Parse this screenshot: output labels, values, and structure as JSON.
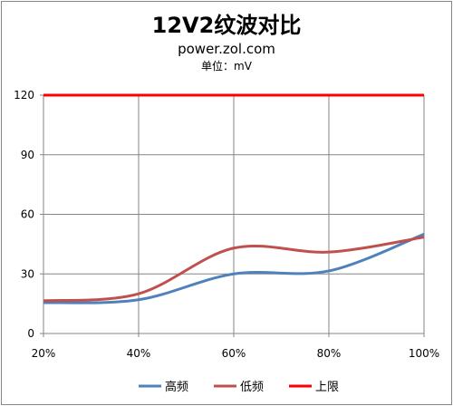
{
  "chart_data": {
    "type": "line",
    "title": "12V2纹波对比",
    "subtitle": "power.zol.com",
    "unit_label": "单位：mV",
    "categories": [
      "20%",
      "40%",
      "60%",
      "80%",
      "100%"
    ],
    "x": [
      20,
      40,
      60,
      80,
      100
    ],
    "y_ticks": [
      0,
      30,
      60,
      90,
      120
    ],
    "ylim": [
      0,
      120
    ],
    "grid": true,
    "legend_position": "bottom",
    "series": [
      {
        "name": "高频",
        "color": "#4f81bd",
        "values": [
          15.5,
          17,
          30,
          31.5,
          50
        ]
      },
      {
        "name": "低频",
        "color": "#c0504d",
        "values": [
          16.5,
          20,
          43,
          41,
          48.5
        ]
      },
      {
        "name": "上限",
        "color": "#ff0000",
        "values": [
          120,
          120,
          120,
          120,
          120
        ]
      }
    ]
  }
}
